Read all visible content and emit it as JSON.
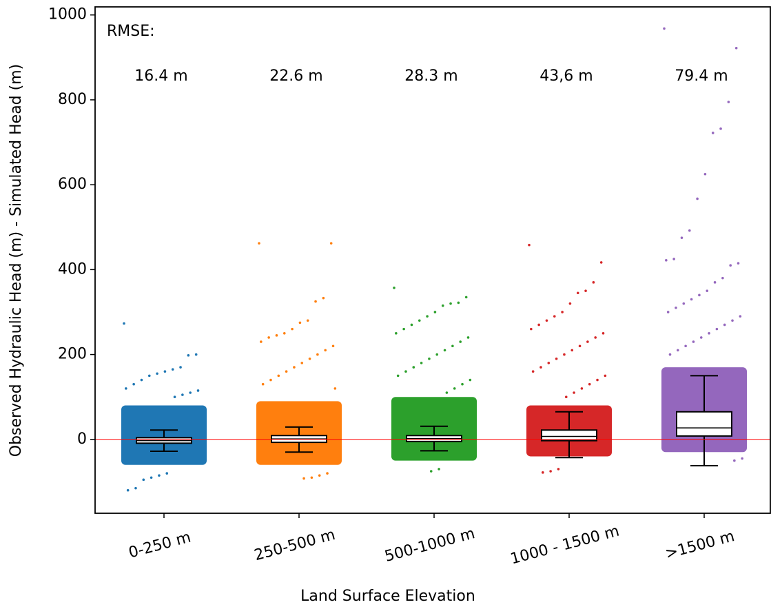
{
  "chart_data": {
    "type": "box",
    "xlabel": "Land Surface Elevation",
    "ylabel": "Observed Hydraulic Head (m) - Simulated Head (m)",
    "categories": [
      "0-250 m",
      "250-500 m",
      "500-1000 m",
      "1000 - 1500 m",
      ">1500 m"
    ],
    "ylim": [
      -174,
      1019
    ],
    "yticks": [
      0,
      200,
      400,
      600,
      800,
      1000
    ],
    "reference_line": 0,
    "reference_color": "#ff0000",
    "annotation_title": "RMSE:",
    "annotations": [
      "16.4 m",
      "22.6 m",
      "28.3 m",
      "43,6 m",
      "79.4 m"
    ],
    "groups": [
      {
        "color": "#1f77b4",
        "whislo": -28,
        "q1": -9,
        "median": -3,
        "q3": 4,
        "whishi": 22,
        "core": [
          -60,
          80
        ],
        "points": [
          273,
          200,
          198,
          170,
          165,
          160,
          155,
          150,
          140,
          130,
          120,
          115,
          110,
          105,
          100,
          -80,
          -85,
          -90,
          -95,
          -115,
          -120
        ]
      },
      {
        "color": "#ff7f0e",
        "whislo": -30,
        "q1": -7,
        "median": 1,
        "q3": 9,
        "whishi": 29,
        "core": [
          -60,
          90
        ],
        "points": [
          462,
          462,
          333,
          325,
          280,
          275,
          260,
          250,
          245,
          240,
          230,
          220,
          210,
          200,
          190,
          180,
          170,
          160,
          150,
          140,
          130,
          120,
          -80,
          -85,
          -90,
          -92
        ]
      },
      {
        "color": "#2ca02c",
        "whislo": -27,
        "q1": -5,
        "median": 2,
        "q3": 9,
        "whishi": 31,
        "core": [
          -50,
          100
        ],
        "points": [
          357,
          335,
          322,
          320,
          315,
          300,
          290,
          280,
          270,
          260,
          250,
          240,
          230,
          220,
          210,
          200,
          190,
          180,
          170,
          160,
          150,
          140,
          130,
          120,
          110,
          -70,
          -75
        ]
      },
      {
        "color": "#d62728",
        "whislo": -43,
        "q1": -3,
        "median": 7,
        "q3": 22,
        "whishi": 65,
        "core": [
          -40,
          80
        ],
        "points": [
          458,
          417,
          370,
          350,
          345,
          320,
          300,
          290,
          280,
          270,
          260,
          250,
          240,
          230,
          220,
          210,
          200,
          190,
          180,
          170,
          160,
          150,
          140,
          130,
          120,
          110,
          100,
          -70,
          -75,
          -78
        ]
      },
      {
        "color": "#9467bd",
        "whislo": -62,
        "q1": 8,
        "median": 27,
        "q3": 65,
        "whishi": 150,
        "core": [
          -30,
          170
        ],
        "points": [
          968,
          922,
          795,
          732,
          722,
          625,
          567,
          492,
          475,
          425,
          422,
          415,
          410,
          380,
          370,
          350,
          340,
          330,
          320,
          310,
          300,
          290,
          280,
          270,
          260,
          250,
          240,
          230,
          220,
          210,
          200,
          -45,
          -50
        ]
      }
    ]
  }
}
